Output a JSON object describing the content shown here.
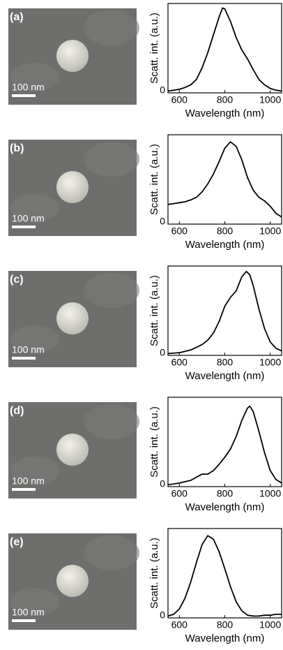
{
  "chart_data": [
    {
      "type": "line",
      "panel_label": "(a)",
      "scale_bar_label": "100 nm",
      "xlabel": "Wavelength (nm)",
      "ylabel": "Scatt. int. (a.u.)",
      "x": [
        550,
        575,
        600,
        625,
        650,
        675,
        700,
        725,
        750,
        775,
        790,
        800,
        825,
        850,
        875,
        900,
        925,
        950,
        975,
        1000,
        1025,
        1050
      ],
      "series": [
        {
          "color": "#000000",
          "values": [
            0.02,
            0.03,
            0.04,
            0.06,
            0.09,
            0.15,
            0.28,
            0.45,
            0.65,
            0.85,
            0.95,
            0.94,
            0.8,
            0.62,
            0.48,
            0.38,
            0.26,
            0.15,
            0.09,
            0.05,
            0.03,
            0.02
          ]
        }
      ],
      "xlim": [
        550,
        1050
      ],
      "xticks": [
        600,
        800,
        1000
      ],
      "ylim": [
        0,
        1
      ],
      "yticks": [
        0
      ]
    },
    {
      "type": "line",
      "panel_label": "(b)",
      "scale_bar_label": "100 nm",
      "xlabel": "Wavelength (nm)",
      "ylabel": "Scatt. int. (a.u.)",
      "x": [
        550,
        575,
        600,
        625,
        650,
        675,
        700,
        725,
        750,
        775,
        800,
        825,
        850,
        875,
        900,
        925,
        950,
        975,
        1000,
        1025,
        1050
      ],
      "series": [
        {
          "color": "#000000",
          "values": [
            0.22,
            0.23,
            0.24,
            0.25,
            0.27,
            0.3,
            0.36,
            0.45,
            0.56,
            0.7,
            0.85,
            0.92,
            0.87,
            0.72,
            0.52,
            0.38,
            0.3,
            0.26,
            0.2,
            0.12,
            0.08
          ]
        }
      ],
      "xlim": [
        550,
        1050
      ],
      "xticks": [
        600,
        800,
        1000
      ],
      "ylim": [
        0,
        1
      ],
      "yticks": [
        0
      ]
    },
    {
      "type": "line",
      "panel_label": "(c)",
      "scale_bar_label": "100 nm",
      "xlabel": "Wavelength (nm)",
      "ylabel": "Scatt. int. (a.u.)",
      "x": [
        550,
        600,
        650,
        700,
        725,
        750,
        775,
        800,
        825,
        850,
        875,
        895,
        910,
        925,
        950,
        975,
        1000,
        1025,
        1050
      ],
      "series": [
        {
          "color": "#000000",
          "values": [
            0.02,
            0.03,
            0.06,
            0.12,
            0.17,
            0.25,
            0.38,
            0.55,
            0.65,
            0.72,
            0.88,
            0.94,
            0.9,
            0.78,
            0.52,
            0.3,
            0.15,
            0.08,
            0.05
          ]
        }
      ],
      "xlim": [
        550,
        1050
      ],
      "xticks": [
        600,
        800,
        1000
      ],
      "ylim": [
        0,
        1
      ],
      "yticks": [
        0
      ]
    },
    {
      "type": "line",
      "panel_label": "(d)",
      "scale_bar_label": "100 nm",
      "xlabel": "Wavelength (nm)",
      "ylabel": "Scatt. int. (a.u.)",
      "x": [
        550,
        600,
        650,
        700,
        725,
        750,
        775,
        800,
        825,
        850,
        875,
        900,
        910,
        925,
        950,
        975,
        1000,
        1025,
        1050
      ],
      "series": [
        {
          "color": "#000000",
          "values": [
            0.02,
            0.04,
            0.07,
            0.14,
            0.14,
            0.18,
            0.25,
            0.33,
            0.42,
            0.56,
            0.74,
            0.88,
            0.9,
            0.84,
            0.62,
            0.38,
            0.18,
            0.08,
            0.04
          ]
        }
      ],
      "xlim": [
        550,
        1050
      ],
      "xticks": [
        600,
        800,
        1000
      ],
      "ylim": [
        0,
        1
      ],
      "yticks": [
        0
      ]
    },
    {
      "type": "line",
      "panel_label": "(e)",
      "scale_bar_label": "100 nm",
      "xlabel": "Wavelength (nm)",
      "ylabel": "Scatt. int. (a.u.)",
      "x": [
        550,
        575,
        600,
        625,
        650,
        675,
        700,
        725,
        750,
        775,
        800,
        825,
        850,
        875,
        900,
        925,
        950,
        975,
        1000,
        1025,
        1050
      ],
      "series": [
        {
          "color": "#000000",
          "values": [
            0.02,
            0.04,
            0.1,
            0.22,
            0.4,
            0.62,
            0.82,
            0.92,
            0.88,
            0.74,
            0.55,
            0.35,
            0.18,
            0.08,
            0.03,
            0.02,
            0.02,
            0.03,
            0.03,
            0.04,
            0.04
          ]
        }
      ],
      "xlim": [
        550,
        1050
      ],
      "xticks": [
        600,
        800,
        1000
      ],
      "ylim": [
        0,
        1
      ],
      "yticks": [
        0
      ]
    }
  ]
}
